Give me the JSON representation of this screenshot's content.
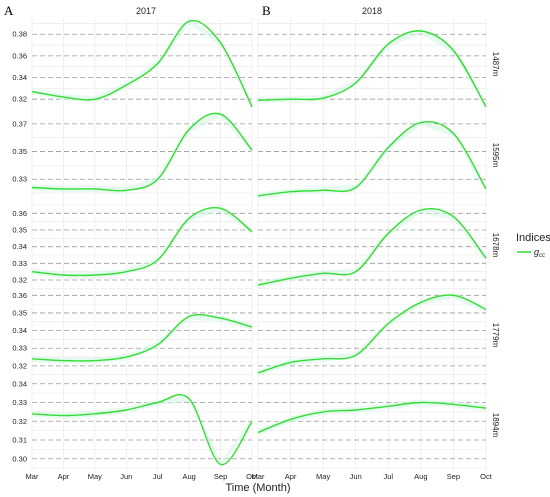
{
  "figure": {
    "panel_letters": [
      "A",
      "B"
    ],
    "columns": [
      "2017",
      "2018"
    ],
    "rows": [
      "1487m",
      "1595m",
      "1678m",
      "1779m",
      "1894m"
    ],
    "xlabel": "Time (Month)",
    "legend": {
      "title": "Indices",
      "label": "g",
      "label_sub": "cc"
    },
    "colors": {
      "line": "#33dd33",
      "ribbon": "#d6f7e4",
      "grid_major": "#9a9a9a",
      "grid_minor": "#e6e6e6"
    }
  },
  "chart_data": [
    {
      "type": "line",
      "panel": "1487m",
      "ylim": [
        0.31,
        0.395
      ],
      "yticks": [
        0.32,
        0.34,
        0.36,
        0.38
      ],
      "x_months": [
        "Mar",
        "Apr",
        "May",
        "Jun",
        "Jul",
        "Aug",
        "Sep",
        "Oct"
      ],
      "series": [
        {
          "year": "2017",
          "values": [
            0.327,
            0.322,
            0.32,
            0.333,
            0.353,
            0.392,
            0.372,
            0.313
          ]
        },
        {
          "year": "2018",
          "values": [
            0.319,
            0.32,
            0.321,
            0.335,
            0.371,
            0.383,
            0.365,
            0.313
          ]
        }
      ]
    },
    {
      "type": "line",
      "panel": "1595m",
      "ylim": [
        0.315,
        0.38
      ],
      "yticks": [
        0.33,
        0.35,
        0.37
      ],
      "x_months": [
        "Mar",
        "Apr",
        "May",
        "Jun",
        "Jul",
        "Aug",
        "Sep",
        "Oct"
      ],
      "series": [
        {
          "year": "2017",
          "values": [
            0.324,
            0.323,
            0.323,
            0.322,
            0.33,
            0.366,
            0.377,
            0.351
          ]
        },
        {
          "year": "2018",
          "values": [
            0.318,
            0.321,
            0.322,
            0.324,
            0.353,
            0.371,
            0.363,
            0.323
          ]
        }
      ]
    },
    {
      "type": "line",
      "panel": "1678m",
      "ylim": [
        0.314,
        0.368
      ],
      "yticks": [
        0.32,
        0.33,
        0.34,
        0.35,
        0.36
      ],
      "x_months": [
        "Mar",
        "Apr",
        "May",
        "Jun",
        "Jul",
        "Aug",
        "Sep",
        "Oct"
      ],
      "series": [
        {
          "year": "2017",
          "values": [
            0.325,
            0.323,
            0.323,
            0.325,
            0.332,
            0.357,
            0.363,
            0.349
          ]
        },
        {
          "year": "2018",
          "values": [
            0.317,
            0.321,
            0.324,
            0.325,
            0.348,
            0.362,
            0.358,
            0.333
          ]
        }
      ]
    },
    {
      "type": "line",
      "panel": "1779m",
      "ylim": [
        0.312,
        0.363
      ],
      "yticks": [
        0.32,
        0.33,
        0.34,
        0.35,
        0.36
      ],
      "x_months": [
        "Mar",
        "Apr",
        "May",
        "Jun",
        "Jul",
        "Aug",
        "Sep",
        "Oct"
      ],
      "series": [
        {
          "year": "2017",
          "values": [
            0.324,
            0.323,
            0.323,
            0.325,
            0.332,
            0.348,
            0.347,
            0.342
          ]
        },
        {
          "year": "2018",
          "values": [
            0.316,
            0.322,
            0.324,
            0.326,
            0.344,
            0.356,
            0.36,
            0.352
          ]
        }
      ]
    },
    {
      "type": "line",
      "panel": "1894m",
      "ylim": [
        0.294,
        0.342
      ],
      "yticks": [
        0.3,
        0.31,
        0.32,
        0.33,
        0.34
      ],
      "x_months": [
        "Mar",
        "Apr",
        "May",
        "Jun",
        "Jul",
        "Aug",
        "Sep",
        "Oct"
      ],
      "series": [
        {
          "year": "2017",
          "values": [
            0.324,
            0.323,
            0.324,
            0.326,
            0.33,
            0.332,
            0.297,
            0.32
          ]
        },
        {
          "year": "2018",
          "values": [
            0.314,
            0.321,
            0.325,
            0.326,
            0.328,
            0.33,
            0.329,
            0.327
          ]
        }
      ]
    }
  ]
}
